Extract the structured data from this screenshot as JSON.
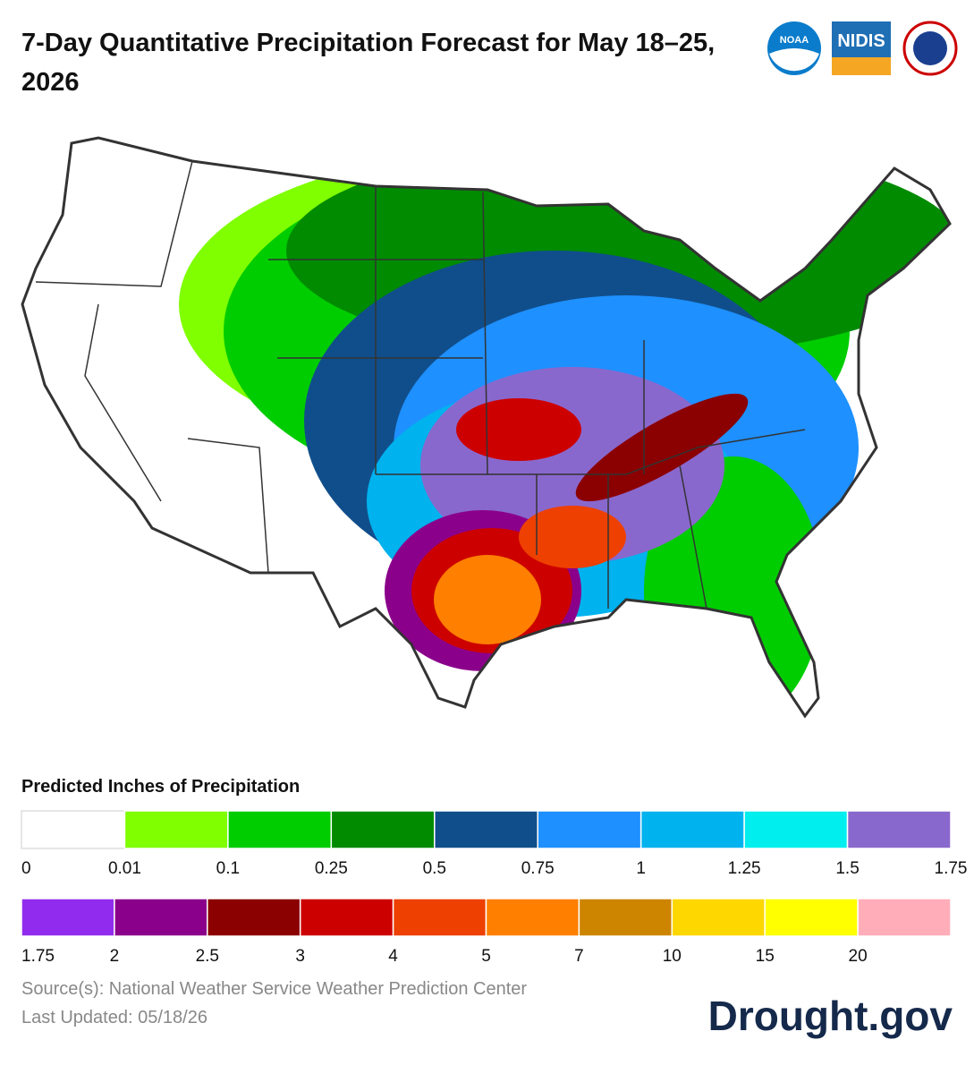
{
  "title": "7-Day Quantitative Precipitation Forecast for May 18–25, 2026",
  "logos": {
    "noaa": "NOAA",
    "nidis": "NIDIS"
  },
  "legend": {
    "title": "Predicted Inches of Precipitation",
    "rows": [
      {
        "colors": [
          "#ffffff",
          "#7fff00",
          "#00cd00",
          "#008b00",
          "#104e8b",
          "#1e90ff",
          "#00b2ee",
          "#00eeee",
          "#8968cd"
        ],
        "labels": [
          "0",
          "0.01",
          "0.1",
          "0.25",
          "0.5",
          "0.75",
          "1",
          "1.25",
          "1.5",
          "1.75"
        ]
      },
      {
        "colors": [
          "#912cee",
          "#8b008b",
          "#8b0000",
          "#cd0000",
          "#ee4000",
          "#ff7f00",
          "#cd8500",
          "#ffd700",
          "#ffff00",
          "#ffaeb9"
        ],
        "labels": [
          "1.75",
          "2",
          "2.5",
          "3",
          "4",
          "5",
          "7",
          "10",
          "15",
          "20"
        ]
      }
    ]
  },
  "source": "Source(s): National Weather Service Weather Prediction Center",
  "updated": "Last Updated: 05/18/26",
  "brand": "Drought.gov"
}
